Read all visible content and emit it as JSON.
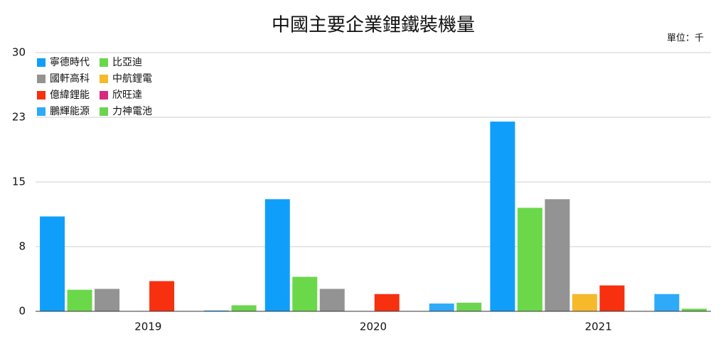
{
  "chart_data": {
    "type": "bar",
    "title": "中國主要企業鋰鐵裝機量",
    "unit_label": "單位：千",
    "categories": [
      "2019",
      "2020",
      "2021"
    ],
    "series": [
      {
        "name": "寧德時代",
        "color": "#0f9ffa",
        "values": [
          11.0,
          13.0,
          22.0
        ]
      },
      {
        "name": "比亞迪",
        "color": "#6bd84a",
        "values": [
          2.5,
          4.0,
          12.0
        ]
      },
      {
        "name": "國軒高科",
        "color": "#939393",
        "values": [
          2.6,
          2.6,
          13.0
        ]
      },
      {
        "name": "中航鋰電",
        "color": "#f6b92b",
        "values": [
          0,
          0,
          2.0
        ]
      },
      {
        "name": "億緯鋰能",
        "color": "#f7300f",
        "values": [
          3.5,
          2.0,
          3.0
        ]
      },
      {
        "name": "欣旺達",
        "color": "#d6297f",
        "values": [
          0,
          0,
          0
        ]
      },
      {
        "name": "鵬輝能源",
        "color": "#2eaaf8",
        "values": [
          0.1,
          0.9,
          2.0
        ]
      },
      {
        "name": "力神電池",
        "color": "#6dd450",
        "values": [
          0.7,
          1.0,
          0.3
        ]
      }
    ],
    "ylim": [
      0,
      30
    ],
    "yticks": [
      0,
      {
        "value": 7.5,
        "label": "8"
      },
      15,
      {
        "value": 22.5,
        "label": "23"
      },
      30
    ],
    "grid": true,
    "legend": "top-left"
  }
}
